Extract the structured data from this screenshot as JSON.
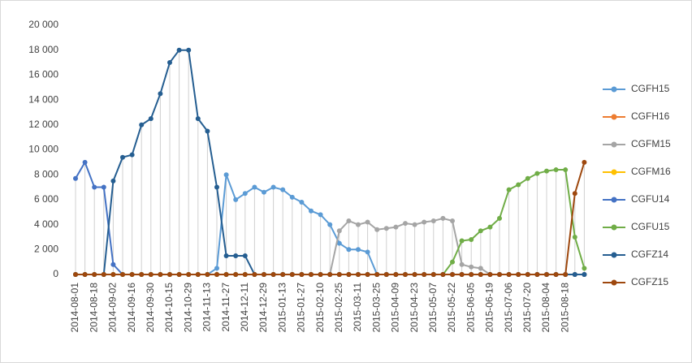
{
  "chart_data": {
    "type": "line",
    "categories": [
      "2014-08-01",
      null,
      "2014-08-18",
      null,
      "2014-09-02",
      null,
      "2014-09-16",
      null,
      "2014-09-30",
      null,
      "2014-10-15",
      null,
      "2014-10-29",
      null,
      "2014-11-13",
      null,
      "2014-11-27",
      null,
      "2014-12-11",
      null,
      "2014-12-29",
      null,
      "2015-01-13",
      null,
      "2015-01-27",
      null,
      "2015-02-10",
      null,
      "2015-02-25",
      null,
      "2015-03-11",
      null,
      "2015-03-25",
      null,
      "2015-04-09",
      null,
      "2015-04-23",
      null,
      "2015-05-07",
      null,
      "2015-05-22",
      null,
      "2015-06-05",
      null,
      "2015-06-19",
      null,
      "2015-07-06",
      null,
      "2015-07-20",
      null,
      "2015-08-04",
      null,
      "2015-08-18",
      null,
      null
    ],
    "ylim": [
      0,
      20000
    ],
    "yticks": [
      0,
      {
        "value": 2000,
        "label": "2 000"
      },
      {
        "value": 4000,
        "label": "4 000"
      },
      {
        "value": 6000,
        "label": "6 000"
      },
      {
        "value": 8000,
        "label": "8 000"
      },
      {
        "value": 10000,
        "label": "10 000"
      },
      {
        "value": 12000,
        "label": "12 000"
      },
      {
        "value": 14000,
        "label": "14 000"
      },
      {
        "value": 16000,
        "label": "16 000"
      },
      {
        "value": 18000,
        "label": "18 000"
      },
      {
        "value": 20000,
        "label": "20 000"
      }
    ],
    "legend": "right",
    "series": [
      {
        "name": "CGFH15",
        "color": "#5b9bd5",
        "values": [
          0,
          0,
          0,
          0,
          0,
          0,
          0,
          0,
          0,
          0,
          0,
          0,
          0,
          0,
          0,
          500,
          8000,
          6000,
          6500,
          7000,
          6600,
          7000,
          6800,
          6200,
          5800,
          5100,
          4800,
          4000,
          2500,
          2000,
          2000,
          1800,
          0,
          0,
          0,
          0,
          0,
          0,
          0,
          0,
          0,
          0,
          0,
          0,
          0,
          0,
          0,
          0,
          0,
          0,
          0,
          0,
          0,
          0,
          0
        ]
      },
      {
        "name": "CGFH16",
        "color": "#ed7d31",
        "values": [
          0,
          0,
          0,
          0,
          0,
          0,
          0,
          0,
          0,
          0,
          0,
          0,
          0,
          0,
          0,
          0,
          0,
          0,
          0,
          0,
          0,
          0,
          0,
          0,
          0,
          0,
          0,
          0,
          0,
          0,
          0,
          0,
          0,
          0,
          0,
          0,
          0,
          0,
          0,
          0,
          0,
          0,
          0,
          0,
          0,
          0,
          0,
          0,
          0,
          0,
          0,
          0,
          0,
          0,
          0
        ]
      },
      {
        "name": "CGFM15",
        "color": "#a5a5a5",
        "values": [
          0,
          0,
          0,
          0,
          0,
          0,
          0,
          0,
          0,
          0,
          0,
          0,
          0,
          0,
          0,
          0,
          0,
          0,
          0,
          0,
          0,
          0,
          0,
          0,
          0,
          0,
          0,
          0,
          3500,
          4300,
          4000,
          4200,
          3600,
          3700,
          3800,
          4100,
          4000,
          4200,
          4300,
          4500,
          4300,
          800,
          600,
          500,
          0,
          0,
          0,
          0,
          0,
          0,
          0,
          0,
          0,
          0,
          0
        ]
      },
      {
        "name": "CGFM16",
        "color": "#ffc000",
        "values": [
          0,
          0,
          0,
          0,
          0,
          0,
          0,
          0,
          0,
          0,
          0,
          0,
          0,
          0,
          0,
          0,
          0,
          0,
          0,
          0,
          0,
          0,
          0,
          0,
          0,
          0,
          0,
          0,
          0,
          0,
          0,
          0,
          0,
          0,
          0,
          0,
          0,
          0,
          0,
          0,
          0,
          0,
          0,
          0,
          0,
          0,
          0,
          0,
          0,
          0,
          0,
          0,
          0,
          0,
          0
        ]
      },
      {
        "name": "CGFU14",
        "color": "#4472c4",
        "values": [
          7700,
          9000,
          7000,
          7000,
          800,
          0,
          0,
          0,
          0,
          0,
          0,
          0,
          0,
          0,
          0,
          0,
          0,
          0,
          0,
          0,
          0,
          0,
          0,
          0,
          0,
          0,
          0,
          0,
          0,
          0,
          0,
          0,
          0,
          0,
          0,
          0,
          0,
          0,
          0,
          0,
          0,
          0,
          0,
          0,
          0,
          0,
          0,
          0,
          0,
          0,
          0,
          0,
          0,
          0,
          0
        ]
      },
      {
        "name": "CGFU15",
        "color": "#70ad47",
        "values": [
          0,
          0,
          0,
          0,
          0,
          0,
          0,
          0,
          0,
          0,
          0,
          0,
          0,
          0,
          0,
          0,
          0,
          0,
          0,
          0,
          0,
          0,
          0,
          0,
          0,
          0,
          0,
          0,
          0,
          0,
          0,
          0,
          0,
          0,
          0,
          0,
          0,
          0,
          0,
          0,
          1000,
          2700,
          2800,
          3500,
          3800,
          4500,
          6800,
          7200,
          7700,
          8100,
          8300,
          8400,
          8400,
          3000,
          500
        ]
      },
      {
        "name": "CGFZ14",
        "color": "#255e91",
        "values": [
          0,
          0,
          0,
          0,
          7500,
          9400,
          9600,
          12000,
          12500,
          14500,
          17000,
          18000,
          18000,
          12500,
          11500,
          7000,
          1500,
          1500,
          1500,
          0,
          0,
          0,
          0,
          0,
          0,
          0,
          0,
          0,
          0,
          0,
          0,
          0,
          0,
          0,
          0,
          0,
          0,
          0,
          0,
          0,
          0,
          0,
          0,
          0,
          0,
          0,
          0,
          0,
          0,
          0,
          0,
          0,
          0,
          0,
          0
        ]
      },
      {
        "name": "CGFZ15",
        "color": "#9e480e",
        "values": [
          0,
          0,
          0,
          0,
          0,
          0,
          0,
          0,
          0,
          0,
          0,
          0,
          0,
          0,
          0,
          0,
          0,
          0,
          0,
          0,
          0,
          0,
          0,
          0,
          0,
          0,
          0,
          0,
          0,
          0,
          0,
          0,
          0,
          0,
          0,
          0,
          0,
          0,
          0,
          0,
          0,
          0,
          0,
          0,
          0,
          0,
          0,
          0,
          0,
          0,
          0,
          0,
          0,
          6500,
          9000
        ]
      }
    ]
  }
}
